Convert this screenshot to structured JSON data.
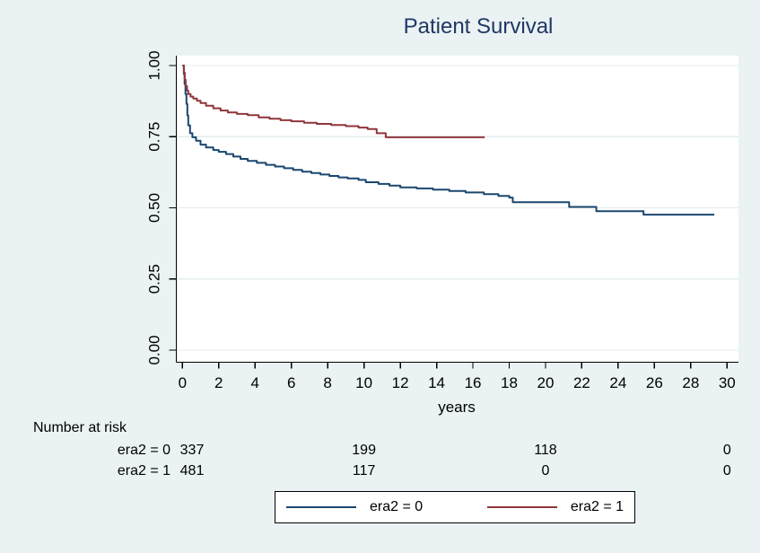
{
  "title": "Patient Survival",
  "colors": {
    "background": "#eaf2f3",
    "plot_bg": "#ffffff",
    "grid": "#e4edef",
    "axis": "#000000",
    "title_color": "#203864",
    "era2_0": "#1a476f",
    "era2_1": "#90353b"
  },
  "chart_data": {
    "type": "line",
    "subtype": "kaplan-meier-step",
    "title": "Patient Survival",
    "xlabel": "years",
    "ylabel": "",
    "xlim": [
      0,
      30
    ],
    "ylim": [
      0,
      1
    ],
    "grid": true,
    "legend_position": "bottom",
    "x_ticks": [
      0,
      2,
      4,
      6,
      8,
      10,
      12,
      14,
      16,
      18,
      20,
      22,
      24,
      26,
      28,
      30
    ],
    "y_ticks": {
      "values": [
        0,
        0.25,
        0.5,
        0.75,
        1
      ],
      "labels": [
        "0.00",
        "0.25",
        "0.50",
        "0.75",
        "1.00"
      ]
    },
    "series": [
      {
        "name": "era2 = 0",
        "color": "#1a476f",
        "points": [
          [
            0,
            1
          ],
          [
            0.08,
            0.97
          ],
          [
            0.12,
            0.935
          ],
          [
            0.17,
            0.9
          ],
          [
            0.22,
            0.865
          ],
          [
            0.27,
            0.825
          ],
          [
            0.32,
            0.79
          ],
          [
            0.42,
            0.762
          ],
          [
            0.55,
            0.748
          ],
          [
            0.75,
            0.736
          ],
          [
            1,
            0.722
          ],
          [
            1.3,
            0.712
          ],
          [
            1.7,
            0.703
          ],
          [
            2,
            0.697
          ],
          [
            2.4,
            0.689
          ],
          [
            2.8,
            0.68
          ],
          [
            3.2,
            0.672
          ],
          [
            3.6,
            0.665
          ],
          [
            4.1,
            0.658
          ],
          [
            4.6,
            0.651
          ],
          [
            5.1,
            0.645
          ],
          [
            5.6,
            0.639
          ],
          [
            6.1,
            0.633
          ],
          [
            6.6,
            0.627
          ],
          [
            7.1,
            0.622
          ],
          [
            7.6,
            0.617
          ],
          [
            8.1,
            0.612
          ],
          [
            8.6,
            0.607
          ],
          [
            9.1,
            0.603
          ],
          [
            9.7,
            0.598
          ],
          [
            10.1,
            0.59
          ],
          [
            10.8,
            0.584
          ],
          [
            11.4,
            0.578
          ],
          [
            12,
            0.572
          ],
          [
            12.9,
            0.568
          ],
          [
            13.8,
            0.564
          ],
          [
            14.7,
            0.559
          ],
          [
            15.6,
            0.554
          ],
          [
            16.6,
            0.548
          ],
          [
            17.4,
            0.542
          ],
          [
            18,
            0.536
          ],
          [
            18.2,
            0.52
          ],
          [
            21.3,
            0.503
          ],
          [
            22.8,
            0.488
          ],
          [
            25.4,
            0.476
          ],
          [
            29.3,
            0.476
          ]
        ]
      },
      {
        "name": "era2 = 1",
        "color": "#90353b",
        "points": [
          [
            0,
            1
          ],
          [
            0.08,
            0.975
          ],
          [
            0.13,
            0.95
          ],
          [
            0.18,
            0.928
          ],
          [
            0.25,
            0.912
          ],
          [
            0.32,
            0.9
          ],
          [
            0.45,
            0.891
          ],
          [
            0.6,
            0.884
          ],
          [
            0.8,
            0.876
          ],
          [
            1,
            0.868
          ],
          [
            1.3,
            0.859
          ],
          [
            1.7,
            0.85
          ],
          [
            2.1,
            0.842
          ],
          [
            2.5,
            0.835
          ],
          [
            3,
            0.83
          ],
          [
            3.6,
            0.826
          ],
          [
            4.2,
            0.818
          ],
          [
            4.8,
            0.813
          ],
          [
            5.4,
            0.808
          ],
          [
            6,
            0.804
          ],
          [
            6.7,
            0.799
          ],
          [
            7.4,
            0.795
          ],
          [
            8.2,
            0.791
          ],
          [
            9,
            0.787
          ],
          [
            9.7,
            0.782
          ],
          [
            10.2,
            0.777
          ],
          [
            10.7,
            0.762
          ],
          [
            11.2,
            0.748
          ],
          [
            16.65,
            0.748
          ]
        ]
      }
    ]
  },
  "risk_table": {
    "heading": "Number at risk",
    "time_points": [
      0,
      10,
      20,
      30
    ],
    "rows": [
      {
        "label": "era2 = 0",
        "counts": [
          "337",
          "199",
          "118",
          "0"
        ]
      },
      {
        "label": "era2 = 1",
        "counts": [
          "481",
          "117",
          "0",
          "0"
        ]
      }
    ]
  },
  "legend": {
    "items": [
      {
        "label": "era2 = 0",
        "color": "#1a476f"
      },
      {
        "label": "era2 = 1",
        "color": "#90353b"
      }
    ]
  }
}
